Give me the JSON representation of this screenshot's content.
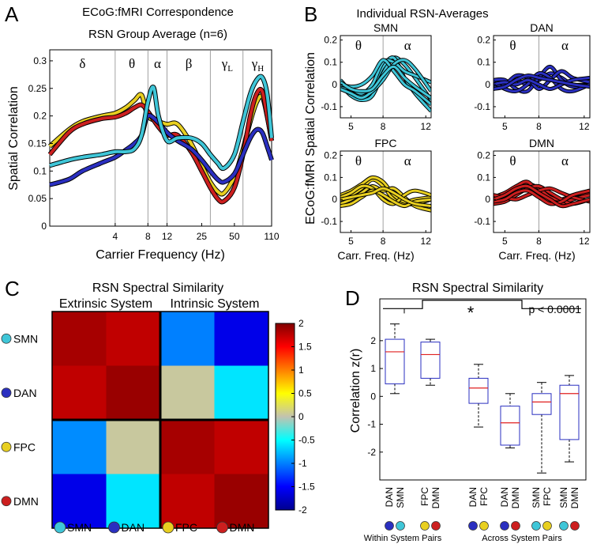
{
  "colors": {
    "SMN": "#3fc6d8",
    "DAN": "#2a2fc0",
    "FPC": "#e8cf20",
    "DMN": "#cc1f1f",
    "outline": "#000000"
  },
  "panels": {
    "A": "A",
    "B": "B",
    "C": "C",
    "D": "D"
  },
  "chart_data": [
    {
      "id": "A",
      "type": "line",
      "title": "ECoG:fMRI Correspondence",
      "subtitle": "RSN Group Average (n=6)",
      "xlabel": "Carrier Frequency (Hz)",
      "ylabel": "Spatial Correlation",
      "xscale": "log",
      "xlim": [
        1,
        110
      ],
      "ylim": [
        0,
        0.32
      ],
      "xticks": [
        4,
        8,
        12,
        25,
        50,
        110
      ],
      "xtick_labels": [
        "4",
        "8",
        "12",
        "25",
        "50",
        "110"
      ],
      "yticks": [
        0,
        0.05,
        0.1,
        0.15,
        0.2,
        0.25,
        0.3
      ],
      "ytick_labels": [
        "0",
        "0.05",
        "0.1",
        "0.15",
        "0.2",
        "0.25",
        "0.3"
      ],
      "band_edges": [
        4,
        8,
        12,
        30,
        60
      ],
      "bands": [
        {
          "greek": "δ",
          "sub": "",
          "at": 2
        },
        {
          "greek": "θ",
          "sub": "",
          "at": 5.7
        },
        {
          "greek": "α",
          "sub": "",
          "at": 9.8
        },
        {
          "greek": "β",
          "sub": "",
          "at": 19
        },
        {
          "greek": "γ",
          "sub": "L",
          "at": 43
        },
        {
          "greek": "γ",
          "sub": "H",
          "at": 82
        }
      ],
      "series": [
        {
          "name": "FPC",
          "x": [
            1,
            1.5,
            2,
            3,
            4,
            5,
            6,
            7,
            8,
            10,
            12,
            15,
            20,
            25,
            30,
            35,
            40,
            50,
            60,
            70,
            80,
            90,
            100,
            110
          ],
          "y": [
            0.145,
            0.175,
            0.19,
            0.2,
            0.205,
            0.215,
            0.228,
            0.238,
            0.2,
            0.19,
            0.185,
            0.185,
            0.15,
            0.11,
            0.08,
            0.063,
            0.06,
            0.09,
            0.14,
            0.19,
            0.225,
            0.235,
            0.2,
            0.155
          ]
        },
        {
          "name": "DMN",
          "x": [
            1,
            1.5,
            2,
            3,
            4,
            5,
            6,
            7,
            8,
            10,
            12,
            15,
            20,
            25,
            30,
            35,
            40,
            50,
            60,
            70,
            80,
            90,
            100,
            110
          ],
          "y": [
            0.13,
            0.17,
            0.185,
            0.195,
            0.198,
            0.205,
            0.215,
            0.22,
            0.208,
            0.18,
            0.165,
            0.165,
            0.135,
            0.1,
            0.07,
            0.05,
            0.045,
            0.07,
            0.13,
            0.2,
            0.24,
            0.245,
            0.2,
            0.155
          ]
        },
        {
          "name": "DAN",
          "x": [
            1,
            1.5,
            2,
            3,
            4,
            5,
            6,
            7,
            8,
            10,
            12,
            15,
            20,
            25,
            30,
            35,
            40,
            50,
            60,
            70,
            80,
            90,
            100,
            110
          ],
          "y": [
            0.075,
            0.085,
            0.1,
            0.115,
            0.125,
            0.138,
            0.15,
            0.165,
            0.2,
            0.188,
            0.17,
            0.155,
            0.14,
            0.12,
            0.1,
            0.085,
            0.08,
            0.095,
            0.13,
            0.16,
            0.175,
            0.17,
            0.145,
            0.12
          ]
        },
        {
          "name": "SMN",
          "x": [
            1,
            1.5,
            2,
            3,
            4,
            5,
            6,
            7,
            8,
            9,
            10,
            12,
            15,
            20,
            25,
            30,
            35,
            40,
            50,
            60,
            70,
            80,
            90,
            100,
            110
          ],
          "y": [
            0.11,
            0.12,
            0.125,
            0.13,
            0.135,
            0.135,
            0.14,
            0.165,
            0.225,
            0.252,
            0.2,
            0.155,
            0.16,
            0.16,
            0.15,
            0.13,
            0.115,
            0.105,
            0.13,
            0.19,
            0.24,
            0.265,
            0.27,
            0.24,
            0.16
          ]
        }
      ]
    },
    {
      "id": "B",
      "type": "line",
      "title": "Individual RSN-Averages",
      "ylabel": "ECoG:fMRI Spatial Correlation",
      "xlabel": "Carr. Freq. (Hz)",
      "xlim": [
        4,
        12.5
      ],
      "ylim": [
        -0.15,
        0.22
      ],
      "xticks": [
        5,
        8,
        12
      ],
      "yticks": [
        -0.1,
        0,
        0.1,
        0.2
      ],
      "ytick_labels": [
        "-0.1",
        "0",
        "0.1",
        "0.2"
      ],
      "band_edge": 8,
      "band_labels": [
        "θ",
        "α"
      ],
      "subplots": [
        {
          "name": "SMN",
          "x": [
            4,
            5,
            6,
            7,
            8,
            9,
            10,
            11,
            12.5
          ],
          "lines": [
            [
              0.0,
              -0.05,
              -0.07,
              -0.05,
              0.05,
              0.12,
              0.09,
              0.03,
              -0.07
            ],
            [
              0.02,
              -0.03,
              -0.05,
              -0.01,
              0.08,
              0.12,
              0.03,
              -0.04,
              -0.12
            ],
            [
              -0.01,
              -0.02,
              -0.04,
              0.0,
              0.1,
              0.1,
              0.06,
              0.04,
              0.01
            ],
            [
              0.0,
              -0.01,
              0.0,
              0.04,
              0.11,
              0.06,
              0.0,
              -0.03,
              -0.09
            ],
            [
              -0.02,
              -0.04,
              -0.06,
              -0.03,
              0.02,
              0.09,
              0.11,
              0.07,
              -0.03
            ],
            [
              0.01,
              -0.02,
              -0.03,
              -0.02,
              0.04,
              0.08,
              0.03,
              -0.01,
              -0.06
            ]
          ]
        },
        {
          "name": "DAN",
          "x": [
            4,
            5,
            6,
            7,
            8,
            9,
            10,
            11,
            12.5
          ],
          "lines": [
            [
              0.0,
              0.01,
              0.02,
              0.0,
              0.02,
              0.05,
              0.03,
              0.0,
              0.0
            ],
            [
              0.02,
              0.02,
              -0.02,
              -0.03,
              0.03,
              0.08,
              0.02,
              -0.01,
              0.0
            ],
            [
              -0.01,
              0.0,
              0.04,
              0.03,
              -0.02,
              0.02,
              0.06,
              0.03,
              0.01
            ],
            [
              0.01,
              -0.02,
              -0.03,
              0.0,
              0.05,
              0.03,
              -0.02,
              -0.03,
              0.0
            ],
            [
              0.0,
              0.01,
              0.0,
              0.02,
              0.0,
              -0.02,
              0.0,
              0.02,
              0.03
            ],
            [
              -0.02,
              -0.01,
              0.02,
              0.04,
              0.03,
              0.02,
              0.01,
              0.0,
              -0.01
            ]
          ]
        },
        {
          "name": "FPC",
          "x": [
            4,
            5,
            6,
            7,
            8,
            9,
            10,
            11,
            12.5
          ],
          "lines": [
            [
              0.0,
              0.02,
              0.05,
              0.09,
              0.06,
              0.0,
              -0.02,
              -0.02,
              0.0
            ],
            [
              0.02,
              0.04,
              0.07,
              0.1,
              0.08,
              0.02,
              -0.01,
              0.0,
              0.01
            ],
            [
              -0.02,
              0.0,
              0.03,
              0.06,
              0.04,
              0.05,
              0.01,
              -0.03,
              -0.05
            ],
            [
              0.01,
              0.03,
              0.06,
              0.05,
              0.0,
              -0.02,
              0.02,
              0.04,
              0.02
            ],
            [
              -0.03,
              -0.02,
              0.01,
              0.04,
              0.02,
              -0.01,
              -0.03,
              -0.01,
              0.0
            ],
            [
              0.0,
              0.01,
              0.02,
              0.03,
              0.05,
              0.03,
              0.0,
              -0.02,
              -0.03
            ]
          ]
        },
        {
          "name": "DMN",
          "x": [
            4,
            5,
            6,
            7,
            8,
            9,
            10,
            11,
            12.5
          ],
          "lines": [
            [
              0.0,
              0.02,
              0.04,
              0.07,
              0.05,
              0.01,
              0.0,
              0.02,
              0.03
            ],
            [
              0.01,
              0.03,
              0.06,
              0.08,
              0.03,
              -0.01,
              -0.02,
              0.0,
              0.02
            ],
            [
              -0.02,
              -0.01,
              0.02,
              0.05,
              0.06,
              0.03,
              0.0,
              -0.02,
              0.0
            ],
            [
              0.02,
              0.01,
              0.0,
              0.02,
              0.04,
              0.05,
              0.03,
              0.01,
              -0.01
            ],
            [
              -0.01,
              0.0,
              0.03,
              0.04,
              0.01,
              -0.02,
              -0.01,
              0.02,
              0.04
            ],
            [
              0.0,
              0.02,
              0.05,
              0.06,
              0.03,
              0.0,
              -0.03,
              -0.02,
              0.0
            ]
          ]
        }
      ]
    },
    {
      "id": "C",
      "type": "heatmap",
      "title": "RSN Spectral Similarity",
      "group_labels": [
        "Extrinsic System",
        "Intrinsic System"
      ],
      "rows": [
        "SMN",
        "DAN",
        "FPC",
        "DMN"
      ],
      "cols": [
        "SMN",
        "DAN",
        "FPC",
        "DMN"
      ],
      "values": [
        [
          1.85,
          1.75,
          -1.0,
          -1.6
        ],
        [
          1.75,
          1.9,
          0.05,
          -0.6
        ],
        [
          -0.95,
          0.05,
          1.85,
          1.75
        ],
        [
          -1.6,
          -0.6,
          1.75,
          1.9
        ]
      ],
      "clim": [
        -2,
        2
      ],
      "colorbar_ticks": [
        -2,
        -1.5,
        -1,
        -0.5,
        0,
        0.5,
        1,
        1.5,
        2
      ],
      "colorbar_labels": [
        "-2",
        "-1.5",
        "-1",
        "-0.5",
        "0",
        "0.5",
        "1",
        "1.5",
        "2"
      ]
    },
    {
      "id": "D",
      "type": "box",
      "title": "RSN Spectral Similarity",
      "ylabel": "Correlation z(r)",
      "ylim": [
        -3,
        3.5
      ],
      "yticks": [
        -2,
        -1,
        0,
        1,
        2
      ],
      "ytick_labels": [
        "-2",
        "-1",
        "0",
        "1",
        "2"
      ],
      "significance": "*",
      "pvalue": "p < 0.0001",
      "group_labels": [
        "Within System Pairs",
        "Across System Pairs"
      ],
      "boxes": [
        {
          "pair": [
            "DAN",
            "SMN"
          ],
          "group": 0,
          "whisker_low": 0.1,
          "q1": 0.45,
          "median": 1.6,
          "q3": 2.05,
          "whisker_high": 2.6
        },
        {
          "pair": [
            "FPC",
            "DMN"
          ],
          "group": 0,
          "whisker_low": 0.4,
          "q1": 0.65,
          "median": 1.5,
          "q3": 1.95,
          "whisker_high": 2.05
        },
        {
          "pair": [
            "DAN",
            "FPC"
          ],
          "group": 1,
          "whisker_low": -1.1,
          "q1": -0.25,
          "median": 0.3,
          "q3": 0.65,
          "whisker_high": 1.15
        },
        {
          "pair": [
            "DAN",
            "DMN"
          ],
          "group": 1,
          "whisker_low": -1.85,
          "q1": -1.75,
          "median": -0.95,
          "q3": -0.35,
          "whisker_high": 0.1
        },
        {
          "pair": [
            "SMN",
            "FPC"
          ],
          "group": 1,
          "whisker_low": -2.75,
          "q1": -0.65,
          "median": -0.2,
          "q3": 0.1,
          "whisker_high": 0.5
        },
        {
          "pair": [
            "SMN",
            "DMN"
          ],
          "group": 1,
          "whisker_low": -2.35,
          "q1": -1.55,
          "median": 0.1,
          "q3": 0.4,
          "whisker_high": 0.75
        }
      ]
    }
  ]
}
